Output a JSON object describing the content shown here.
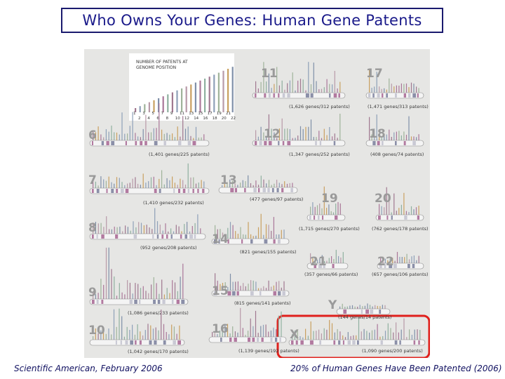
{
  "title": "Who Owns Your Genes: Human Gene Patents",
  "footer": {
    "left": "Scientific American, February 2006",
    "right": "20% of Human Genes Have Been Patented (2006)"
  },
  "legend": {
    "title_line1": "NUMBER OF PATENTS AT",
    "title_line2": "GENOME POSITION",
    "ticks_row1": [
      "1",
      "3",
      "5",
      "7",
      "9",
      "11",
      "13",
      "15",
      "17",
      "19",
      "21"
    ],
    "ticks_row2": [
      "2",
      "4",
      "6",
      "8",
      "10",
      "12",
      "14",
      "16",
      "18",
      "20",
      "22"
    ]
  },
  "chromosomes": [
    {
      "num": "6",
      "label": "(1,401 genes/225 patents)"
    },
    {
      "num": "7",
      "label": "(1,410 genes/232 patents)"
    },
    {
      "num": "8",
      "label": "(952 genes/208 patents)"
    },
    {
      "num": "9",
      "label": "(1,086 genes/233 patents)"
    },
    {
      "num": "10",
      "label": "(1,042 genes/170 patents)"
    },
    {
      "num": "11",
      "label": "(1,626 genes/312 patents)"
    },
    {
      "num": "12",
      "label": "(1,347 genes/252 patents)"
    },
    {
      "num": "13",
      "label": "(477 genes/97 patents)"
    },
    {
      "num": "14",
      "label": "(821 genes/155 patents)"
    },
    {
      "num": "15",
      "label": "(815 genes/141 patents)"
    },
    {
      "num": "16",
      "label": "(1,139 genes/192 patents)"
    },
    {
      "num": "17",
      "label": "(1,471 genes/313 patents)"
    },
    {
      "num": "18",
      "label": "(408 genes/74 patents)"
    },
    {
      "num": "19",
      "label": "(1,715 genes/270 patents)"
    },
    {
      "num": "20",
      "label": "(762 genes/178 patents)"
    },
    {
      "num": "21",
      "label": "(357 genes/66 patents)"
    },
    {
      "num": "22",
      "label": "(657 genes/106 patents)"
    },
    {
      "num": "Y",
      "label": "(144 genes/14 patents)"
    },
    {
      "num": "X",
      "label": "(1,090 genes/200 patents)"
    }
  ],
  "colors": {
    "title_border": "#1a1a6e",
    "title_text": "#1a1a8a",
    "highlight": "#e0201c",
    "figure_bg": "#e6e6e4"
  }
}
